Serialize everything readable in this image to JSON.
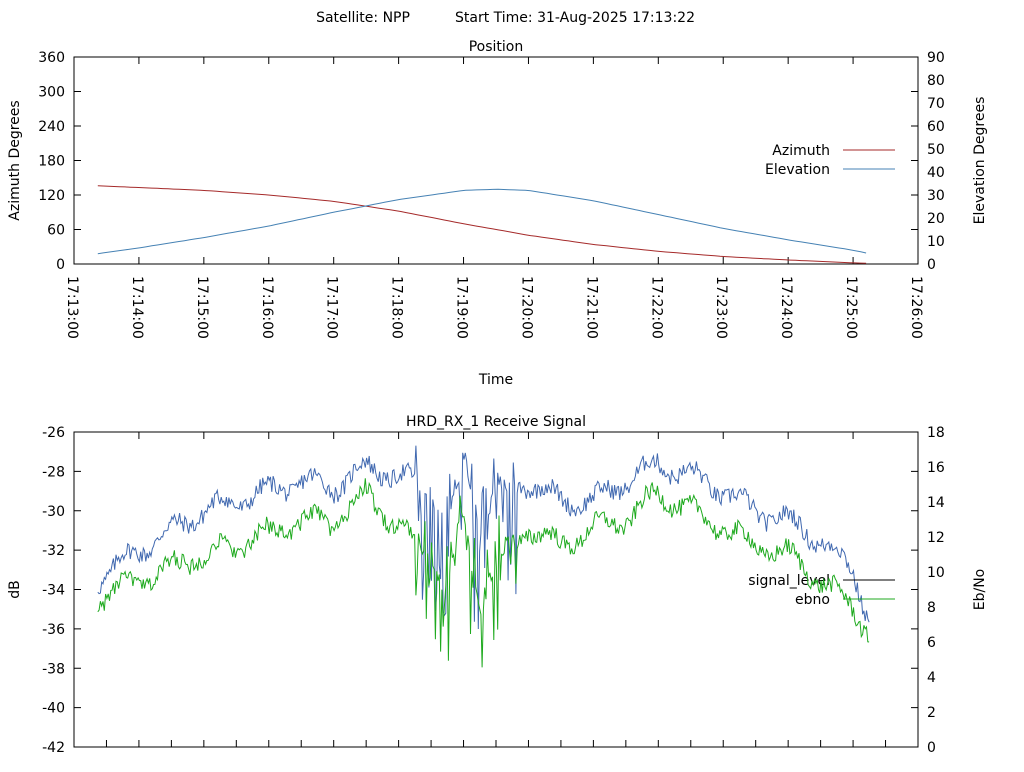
{
  "header": {
    "satellite": "Satellite: NPP",
    "start_time": "Start Time: 31-Aug-2025 17:13:22"
  },
  "chart_data": [
    {
      "type": "line",
      "title": "Position",
      "xlabel": "Time",
      "ylabel": "Azimuth Degrees",
      "y2label": "Elevation Degrees",
      "xlim": [
        "17:13:00",
        "17:26:00"
      ],
      "x_ticks": [
        "17:13:00",
        "17:14:00",
        "17:15:00",
        "17:16:00",
        "17:17:00",
        "17:18:00",
        "17:19:00",
        "17:20:00",
        "17:21:00",
        "17:22:00",
        "17:23:00",
        "17:24:00",
        "17:25:00",
        "17:26:00"
      ],
      "ylim": [
        0,
        360
      ],
      "y_ticks": [
        0,
        60,
        120,
        180,
        240,
        300,
        360
      ],
      "y2lim": [
        0,
        90
      ],
      "y2_ticks": [
        0,
        10,
        20,
        30,
        40,
        50,
        60,
        70,
        80,
        90
      ],
      "legend": "right",
      "series": [
        {
          "name": "Azimuth",
          "axis": "left",
          "color": "#a52a2a",
          "x": [
            "17:13:22",
            "17:14:00",
            "17:15:00",
            "17:16:00",
            "17:17:00",
            "17:18:00",
            "17:19:00",
            "17:20:00",
            "17:21:00",
            "17:22:00",
            "17:23:00",
            "17:24:00",
            "17:25:00",
            "17:25:15"
          ],
          "values": [
            136,
            133,
            128,
            120,
            109,
            92,
            70,
            50,
            34,
            22,
            13,
            7,
            2,
            1
          ]
        },
        {
          "name": "Elevation",
          "axis": "right",
          "color": "#4682b4",
          "x": [
            "17:13:22",
            "17:14:00",
            "17:15:00",
            "17:16:00",
            "17:17:00",
            "17:18:00",
            "17:19:00",
            "17:19:30",
            "17:20:00",
            "17:21:00",
            "17:22:00",
            "17:23:00",
            "17:24:00",
            "17:25:00",
            "17:25:15"
          ],
          "values": [
            4.5,
            7,
            11.5,
            16.5,
            22.5,
            28,
            32,
            32.5,
            32,
            27.5,
            21.5,
            15.5,
            10.5,
            6,
            4.5
          ]
        }
      ]
    },
    {
      "type": "line",
      "title": "HRD_RX_1 Receive Signal",
      "ylabel": "dB",
      "y2label": "Eb/No",
      "xlim": [
        "17:13:00",
        "17:26:00"
      ],
      "ylim": [
        -42,
        -26
      ],
      "y_ticks": [
        -42,
        -40,
        -38,
        -36,
        -34,
        -32,
        -30,
        -28,
        -26
      ],
      "y2lim": [
        0,
        18
      ],
      "y2_ticks": [
        0,
        2,
        4,
        6,
        8,
        10,
        12,
        14,
        16,
        18
      ],
      "legend": "right",
      "series": [
        {
          "name": "signal_level",
          "axis": "left",
          "color": "#4169b0",
          "x": [
            "17:13:22",
            "17:14:00",
            "17:15:00",
            "17:15:30",
            "17:16:00",
            "17:16:30",
            "17:17:00",
            "17:17:30",
            "17:18:00",
            "17:18:30",
            "17:18:45",
            "17:19:00",
            "17:19:15",
            "17:19:30",
            "17:20:00",
            "17:20:30",
            "17:21:00",
            "17:21:30",
            "17:22:00",
            "17:22:30",
            "17:23:00",
            "17:23:30",
            "17:24:00",
            "17:24:30",
            "17:25:00",
            "17:25:15"
          ],
          "values": [
            -33.5,
            -32,
            -30,
            -29.5,
            -29,
            -28.5,
            -28.8,
            -27.8,
            -28.2,
            -29,
            -31,
            -27.2,
            -30.5,
            -29,
            -28.5,
            -29.5,
            -29.5,
            -28.5,
            -27.6,
            -28.2,
            -29,
            -30,
            -30.5,
            -31.5,
            -33,
            -35.5
          ]
        },
        {
          "name": "ebno",
          "axis": "right",
          "color": "#1faa1f",
          "x": [
            "17:13:22",
            "17:14:00",
            "17:15:00",
            "17:15:30",
            "17:16:00",
            "17:16:30",
            "17:17:00",
            "17:17:30",
            "17:18:00",
            "17:18:30",
            "17:18:45",
            "17:19:00",
            "17:19:15",
            "17:19:30",
            "17:20:00",
            "17:20:30",
            "17:21:00",
            "17:21:30",
            "17:22:00",
            "17:22:30",
            "17:23:00",
            "17:23:30",
            "17:24:00",
            "17:24:30",
            "17:25:00",
            "17:25:15"
          ],
          "values": [
            8.5,
            9.5,
            11,
            11.5,
            12.2,
            13,
            12.8,
            14.5,
            12.5,
            11,
            9,
            13.5,
            8,
            10.5,
            12.5,
            11.5,
            12.5,
            13,
            14.5,
            13.5,
            12.5,
            11.5,
            11,
            9.5,
            8,
            6.5
          ]
        }
      ]
    }
  ]
}
